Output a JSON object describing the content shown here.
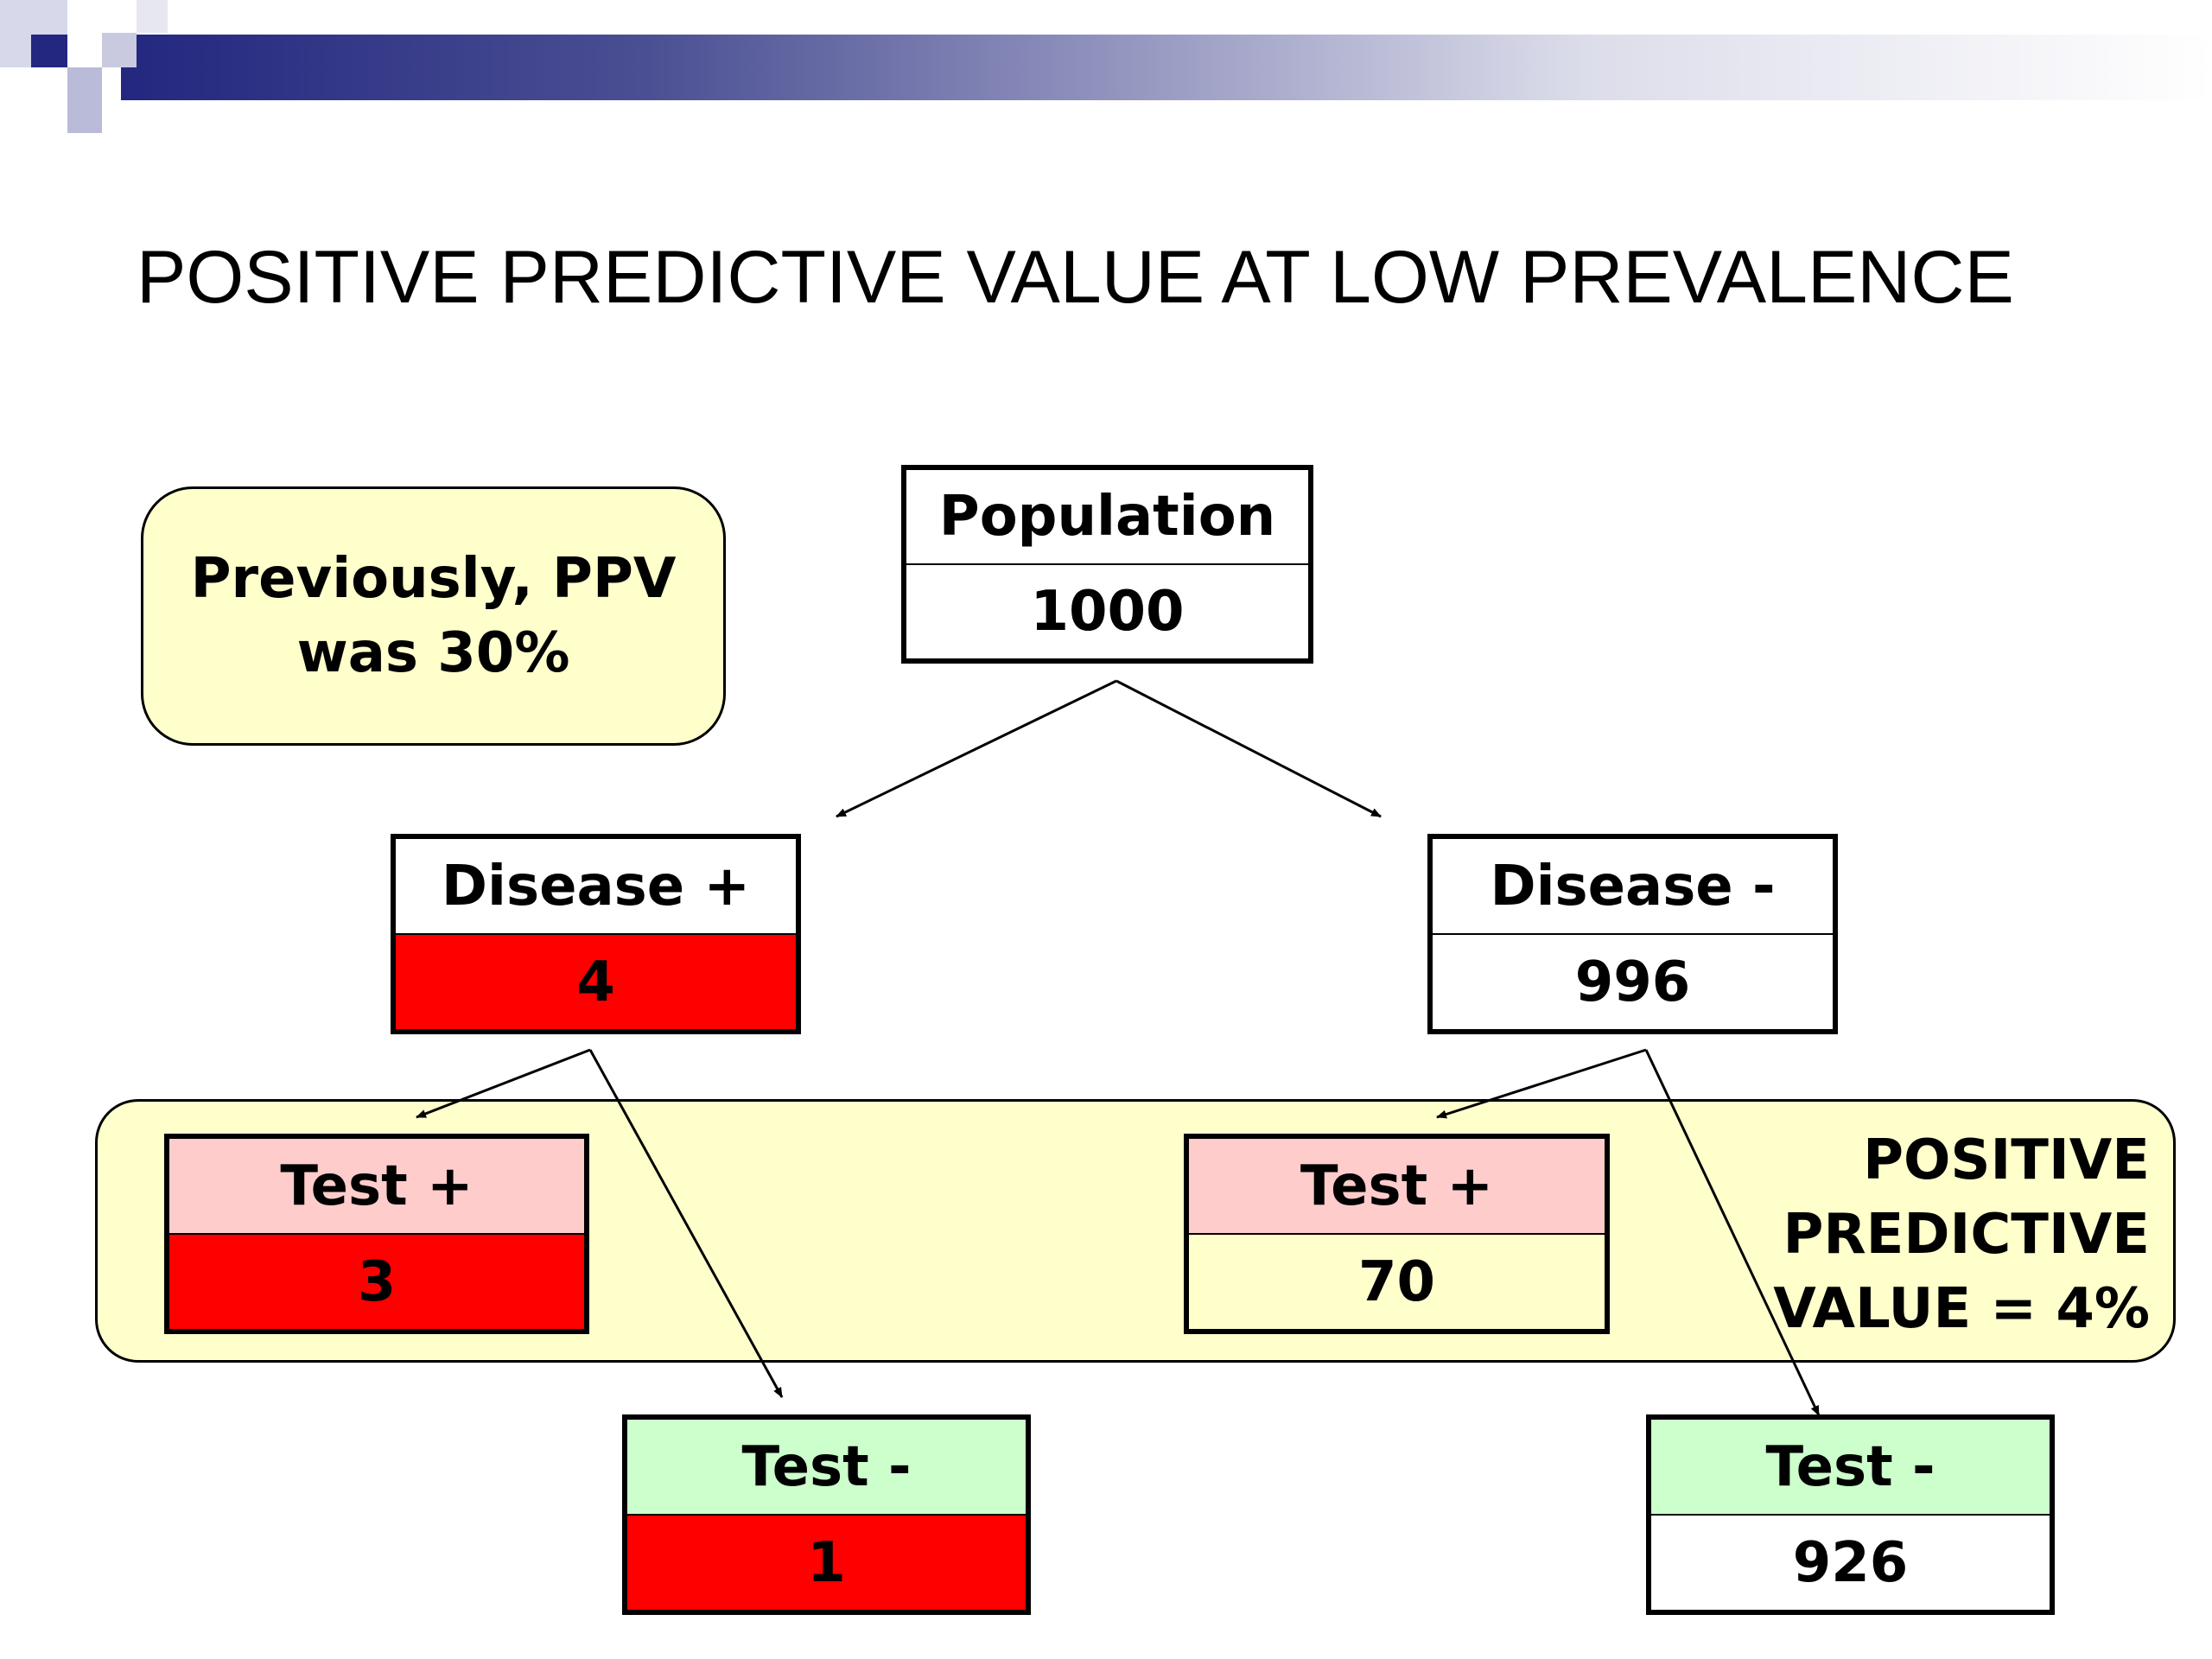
{
  "title": "POSITIVE PREDICTIVE VALUE AT LOW PREVALENCE",
  "note": {
    "line1": "Previously, PPV",
    "line2": "was 30%"
  },
  "ppv_result": {
    "line1": "POSITIVE",
    "line2": "PREDICTIVE",
    "line3": "VALUE = 4%"
  },
  "colors": {
    "disease_positive_fill": "#ff0000",
    "test_positive_header": "#ffcccc",
    "test_negative_header": "#ccffcc",
    "highlight_band": "#ffffcc",
    "banner": "#23277f"
  },
  "nodes": {
    "population": {
      "label": "Population",
      "value": "1000"
    },
    "disease_pos": {
      "label": "Disease +",
      "value": "4"
    },
    "disease_neg": {
      "label": "Disease -",
      "value": "996"
    },
    "dp_test_pos": {
      "label": "Test +",
      "value": "3"
    },
    "dp_test_neg": {
      "label": "Test -",
      "value": "1"
    },
    "dn_test_pos": {
      "label": "Test +",
      "value": "70"
    },
    "dn_test_neg": {
      "label": "Test -",
      "value": "926"
    }
  }
}
